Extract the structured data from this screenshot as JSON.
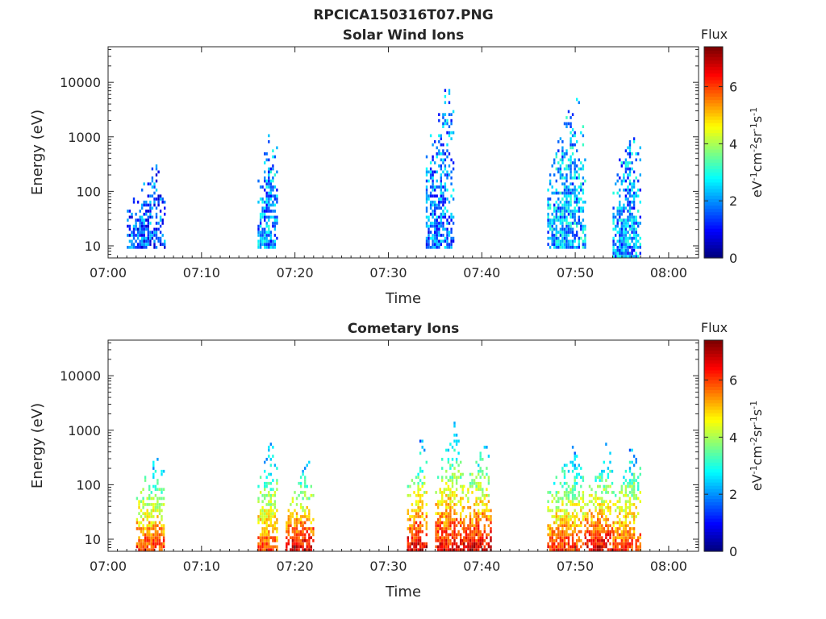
{
  "figure_title": "RPCICA150316T07.PNG",
  "chart_data": [
    {
      "type": "heatmap",
      "title": "Solar Wind Ions",
      "xlabel": "Time",
      "ylabel": "Energy (eV)",
      "y_scale": "log",
      "ylim": [
        6,
        45000
      ],
      "x_ticks": [
        "07:00",
        "07:10",
        "07:20",
        "07:30",
        "07:40",
        "07:50",
        "08:00"
      ],
      "y_ticks": [
        "10",
        "100",
        "1000",
        "10000"
      ],
      "colorbar": {
        "label": "Flux",
        "unit": "eV-1cm-2sr-1s-1",
        "ticks": [
          "0",
          "2",
          "4",
          "6"
        ],
        "range": [
          0,
          7.4
        ],
        "colormap": "jet"
      },
      "bursts": [
        {
          "start": "07:02",
          "end": "07:06",
          "emin": 8,
          "emax": 300,
          "flux_level": 1.5
        },
        {
          "start": "07:16",
          "end": "07:18",
          "emin": 8,
          "emax": 1400,
          "flux_level": 2.0
        },
        {
          "start": "07:34",
          "end": "07:37",
          "emin": 8,
          "emax": 12000,
          "flux_level": 1.8
        },
        {
          "start": "07:47",
          "end": "07:51",
          "emin": 8,
          "emax": 5000,
          "flux_level": 2.2
        },
        {
          "start": "07:54",
          "end": "07:57",
          "emin": 6,
          "emax": 2500,
          "flux_level": 2.0
        }
      ]
    },
    {
      "type": "heatmap",
      "title": "Cometary Ions",
      "xlabel": "Time",
      "ylabel": "Energy (eV)",
      "y_scale": "log",
      "ylim": [
        6,
        45000
      ],
      "x_ticks": [
        "07:00",
        "07:10",
        "07:20",
        "07:30",
        "07:40",
        "07:50",
        "08:00"
      ],
      "y_ticks": [
        "10",
        "100",
        "1000",
        "10000"
      ],
      "colorbar": {
        "label": "Flux",
        "unit": "eV-1cm-2sr-1s-1",
        "ticks": [
          "0",
          "2",
          "4",
          "6"
        ],
        "range": [
          0,
          7.4
        ],
        "colormap": "jet"
      },
      "bursts": [
        {
          "start": "07:03",
          "end": "07:06",
          "emin": 6,
          "emax": 450,
          "flux_level": 6.2
        },
        {
          "start": "07:16",
          "end": "07:18",
          "emin": 6,
          "emax": 800,
          "flux_level": 6.0
        },
        {
          "start": "07:19",
          "end": "07:22",
          "emin": 6,
          "emax": 300,
          "flux_level": 6.8
        },
        {
          "start": "07:32",
          "end": "07:34",
          "emin": 6,
          "emax": 800,
          "flux_level": 6.8
        },
        {
          "start": "07:35",
          "end": "07:38",
          "emin": 6,
          "emax": 1700,
          "flux_level": 6.6
        },
        {
          "start": "07:38",
          "end": "07:41",
          "emin": 6,
          "emax": 850,
          "flux_level": 6.8
        },
        {
          "start": "07:47",
          "end": "07:51",
          "emin": 6,
          "emax": 550,
          "flux_level": 6.2
        },
        {
          "start": "07:51",
          "end": "07:54",
          "emin": 6,
          "emax": 500,
          "flux_level": 6.8
        },
        {
          "start": "07:54",
          "end": "07:57",
          "emin": 6,
          "emax": 650,
          "flux_level": 6.2
        }
      ]
    }
  ]
}
